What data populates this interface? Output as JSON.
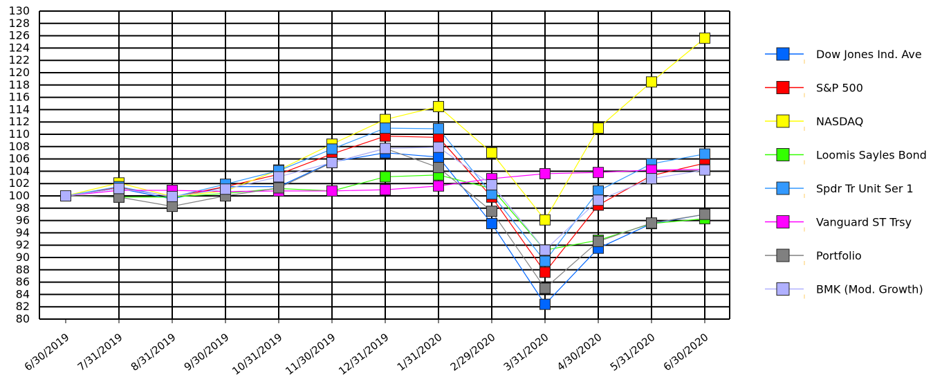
{
  "chart_data": {
    "type": "line",
    "title": "",
    "xlabel": "",
    "ylabel": "",
    "ylim": [
      80,
      130
    ],
    "y_tick_step": 2,
    "grid": true,
    "legend_position": "right",
    "categories": [
      "6/30/2019",
      "7/31/2019",
      "8/31/2019",
      "9/30/2019",
      "10/31/2019",
      "11/30/2019",
      "12/31/2019",
      "1/31/2020",
      "2/29/2020",
      "3/31/2020",
      "4/30/2020",
      "5/31/2020",
      "6/30/2020"
    ],
    "series": [
      {
        "name": "Dow Jones Ind. Ave",
        "color": "#0066ff",
        "values": [
          100,
          101.2,
          99.5,
          101.5,
          101.5,
          105.5,
          107.0,
          106.3,
          95.5,
          82.4,
          91.5,
          95.5,
          97.0
        ]
      },
      {
        "name": "S&P 500",
        "color": "#ff0000",
        "values": [
          100,
          101.4,
          99.8,
          101.5,
          103.5,
          106.8,
          109.7,
          109.5,
          99.8,
          87.6,
          98.5,
          103.3,
          105.3
        ]
      },
      {
        "name": "NASDAQ",
        "color": "#ffff00",
        "values": [
          100,
          102.1,
          99.9,
          100.8,
          104.2,
          108.4,
          112.4,
          114.5,
          107.0,
          96.1,
          111.0,
          118.5,
          125.6
        ]
      },
      {
        "name": "Loomis Sayles Bond",
        "color": "#33ff00",
        "values": [
          100,
          99.8,
          99.8,
          100.4,
          101.2,
          100.8,
          103.1,
          103.4,
          101.2,
          91.2,
          92.8,
          95.5,
          96.3
        ]
      },
      {
        "name": "Spdr Tr Unit Ser 1",
        "color": "#3399ff",
        "values": [
          100,
          101.5,
          99.8,
          101.9,
          104.1,
          107.6,
          111.0,
          110.9,
          100.3,
          89.4,
          100.8,
          105.2,
          106.8
        ]
      },
      {
        "name": "Vanguard ST Trsy",
        "color": "#ff00ff",
        "values": [
          100,
          100.9,
          100.9,
          100.7,
          100.8,
          100.8,
          101.0,
          101.6,
          102.8,
          103.6,
          103.8,
          104.2,
          104.3
        ]
      },
      {
        "name": "Portfolio",
        "color": "#808080",
        "values": [
          100,
          99.8,
          98.3,
          100.0,
          101.3,
          105.4,
          107.7,
          104.6,
          97.5,
          85.0,
          92.6,
          95.6,
          97.0
        ]
      },
      {
        "name": "BMK (Mod. Growth)",
        "color": "#b0b0ff",
        "values": [
          100,
          101.2,
          99.9,
          101.1,
          103.1,
          105.4,
          107.7,
          107.9,
          101.8,
          91.2,
          99.3,
          102.8,
          104.2
        ]
      }
    ]
  }
}
